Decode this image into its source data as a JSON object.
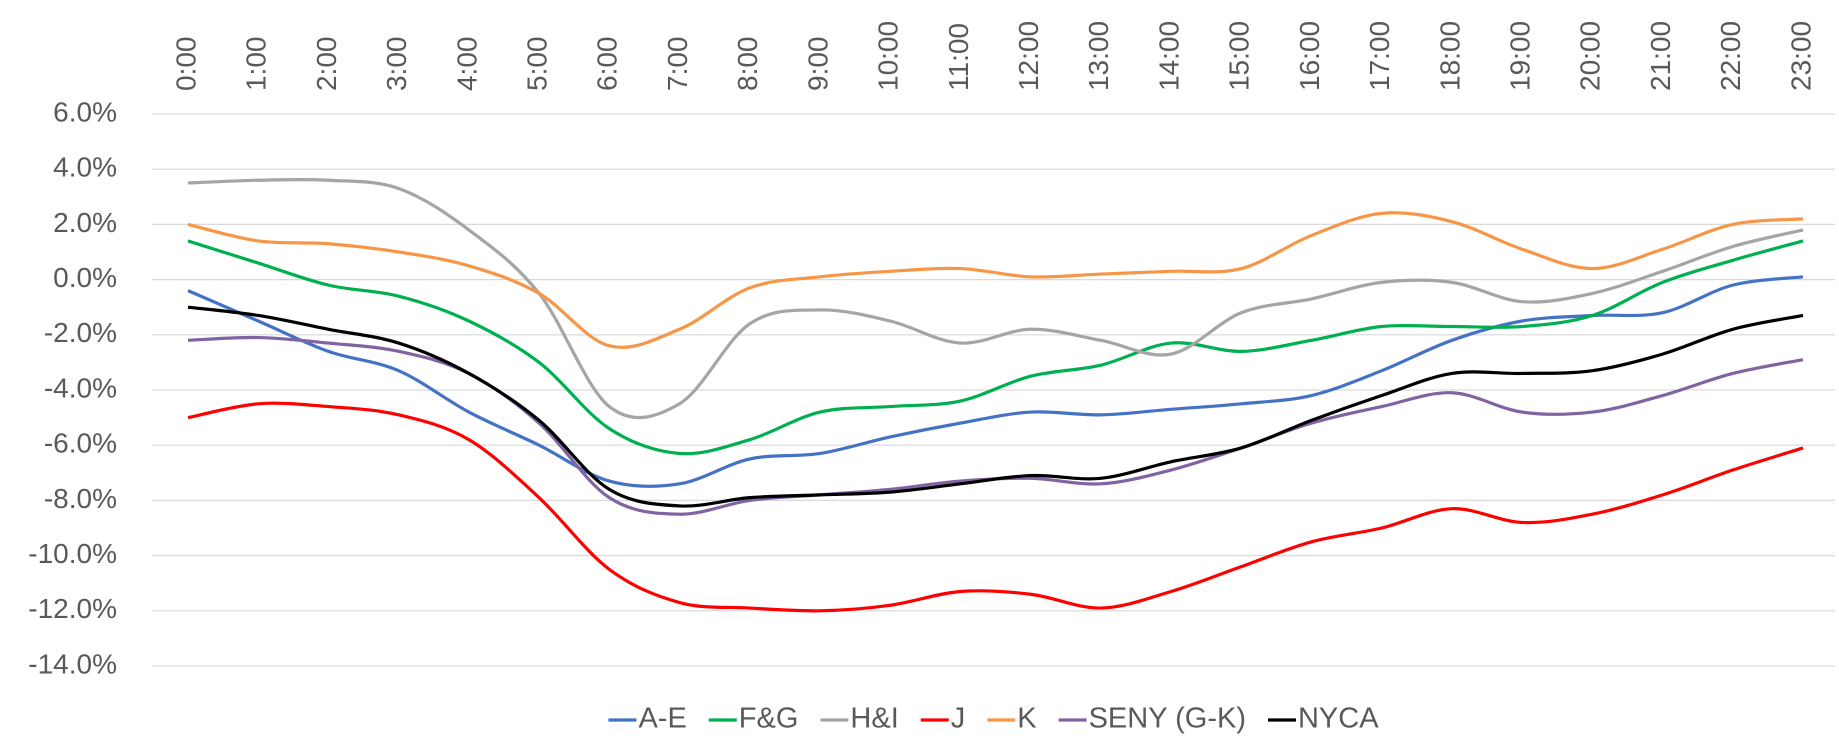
{
  "chart_data": {
    "type": "line",
    "categories": [
      "0:00",
      "1:00",
      "2:00",
      "3:00",
      "4:00",
      "5:00",
      "6:00",
      "7:00",
      "8:00",
      "9:00",
      "10:00",
      "11:00",
      "12:00",
      "13:00",
      "14:00",
      "15:00",
      "16:00",
      "17:00",
      "18:00",
      "19:00",
      "20:00",
      "21:00",
      "22:00",
      "23:00"
    ],
    "series": [
      {
        "name": "A-E",
        "color": "#4472c4",
        "values": [
          -0.4,
          -1.5,
          -2.6,
          -3.3,
          -4.8,
          -6.0,
          -7.3,
          -7.4,
          -6.5,
          -6.3,
          -5.7,
          -5.2,
          -4.8,
          -4.9,
          -4.7,
          -4.5,
          -4.2,
          -3.3,
          -2.2,
          -1.5,
          -1.3,
          -1.2,
          -0.2,
          0.1
        ]
      },
      {
        "name": "F&G",
        "color": "#00b050",
        "values": [
          1.4,
          0.6,
          -0.2,
          -0.6,
          -1.5,
          -3.0,
          -5.4,
          -6.3,
          -5.8,
          -4.8,
          -4.6,
          -4.4,
          -3.5,
          -3.1,
          -2.3,
          -2.6,
          -2.2,
          -1.7,
          -1.7,
          -1.7,
          -1.3,
          -0.1,
          0.7,
          1.4
        ]
      },
      {
        "name": "H&I",
        "color": "#a5a5a5",
        "values": [
          3.5,
          3.6,
          3.6,
          3.3,
          1.8,
          -0.5,
          -4.6,
          -4.5,
          -1.6,
          -1.1,
          -1.5,
          -2.3,
          -1.8,
          -2.2,
          -2.7,
          -1.2,
          -0.7,
          -0.1,
          -0.1,
          -0.8,
          -0.5,
          0.3,
          1.2,
          1.8
        ]
      },
      {
        "name": "J",
        "color": "#ff0000",
        "values": [
          -5.0,
          -4.5,
          -4.6,
          -4.9,
          -5.8,
          -7.9,
          -10.5,
          -11.7,
          -11.9,
          -12.0,
          -11.8,
          -11.3,
          -11.4,
          -11.9,
          -11.3,
          -10.4,
          -9.5,
          -9.0,
          -8.3,
          -8.8,
          -8.5,
          -7.8,
          -6.9,
          -6.1
        ]
      },
      {
        "name": "K",
        "color": "#f79646",
        "values": [
          2.0,
          1.4,
          1.3,
          1.0,
          0.5,
          -0.5,
          -2.4,
          -1.8,
          -0.3,
          0.1,
          0.3,
          0.4,
          0.1,
          0.2,
          0.3,
          0.4,
          1.6,
          2.4,
          2.1,
          1.1,
          0.4,
          1.1,
          2.0,
          2.2
        ]
      },
      {
        "name": "SENY (G-K)",
        "color": "#8064a2",
        "values": [
          -2.2,
          -2.1,
          -2.3,
          -2.6,
          -3.4,
          -5.2,
          -7.9,
          -8.5,
          -8.0,
          -7.8,
          -7.6,
          -7.3,
          -7.2,
          -7.4,
          -6.9,
          -6.1,
          -5.2,
          -4.6,
          -4.1,
          -4.8,
          -4.8,
          -4.2,
          -3.4,
          -2.9
        ]
      },
      {
        "name": "NYCA",
        "color": "#000000",
        "values": [
          -1.0,
          -1.3,
          -1.8,
          -2.3,
          -3.4,
          -5.1,
          -7.6,
          -8.2,
          -7.9,
          -7.8,
          -7.7,
          -7.4,
          -7.1,
          -7.2,
          -6.6,
          -6.1,
          -5.1,
          -4.2,
          -3.4,
          -3.4,
          -3.3,
          -2.7,
          -1.8,
          -1.3
        ]
      }
    ],
    "ylim": [
      -14,
      6
    ],
    "yticks": [
      {
        "value": 6,
        "label": "6.0%"
      },
      {
        "value": 4,
        "label": "4.0%"
      },
      {
        "value": 2,
        "label": "2.0%"
      },
      {
        "value": 0,
        "label": "0.0%"
      },
      {
        "value": -2,
        "label": "-2.0%"
      },
      {
        "value": -4,
        "label": "-4.0%"
      },
      {
        "value": -6,
        "label": "-6.0%"
      },
      {
        "value": -8,
        "label": "-8.0%"
      },
      {
        "value": -10,
        "label": "-10.0%"
      },
      {
        "value": -12,
        "label": "-12.0%"
      },
      {
        "value": -14,
        "label": "-14.0%"
      }
    ],
    "grid": true,
    "legend": "bottom"
  }
}
